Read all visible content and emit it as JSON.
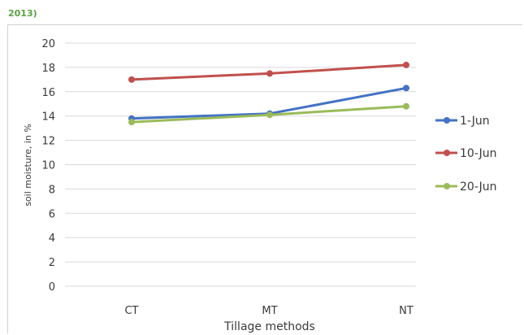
{
  "header": {
    "fragment": "2013)"
  },
  "chart_data": {
    "type": "line",
    "title": "",
    "xlabel": "Tillage methods",
    "ylabel": "soil moisture, in %",
    "categories": [
      "CT",
      "MT",
      "NT"
    ],
    "ylim": [
      0,
      20
    ],
    "yticks": [
      "0",
      "2",
      "4",
      "6",
      "8",
      "10",
      "12",
      "14",
      "16",
      "18",
      "20"
    ],
    "grid": true,
    "legend_position": "right",
    "series": [
      {
        "name": "1-Jun",
        "values": [
          13.8,
          14.2,
          16.3
        ],
        "color": "#4472c4"
      },
      {
        "name": "10-Jun",
        "values": [
          17.0,
          17.5,
          18.2
        ],
        "color": "#c0504d"
      },
      {
        "name": "20-Jun",
        "values": [
          13.5,
          14.1,
          14.8
        ],
        "color": "#9bbb59"
      }
    ]
  }
}
